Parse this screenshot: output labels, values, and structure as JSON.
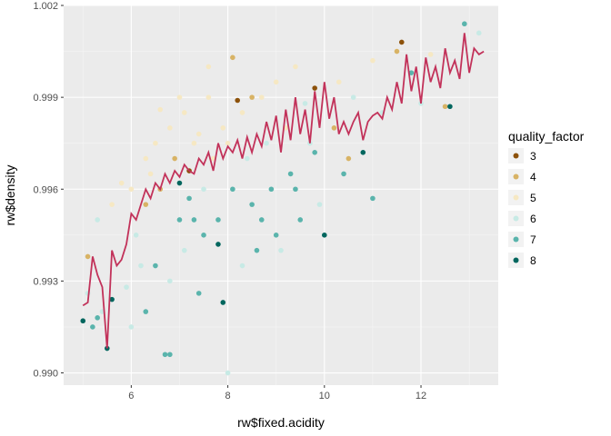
{
  "chart_data": {
    "type": "scatter",
    "title": "",
    "xlabel": "rw$fixed.acidity",
    "ylabel": "rw$density",
    "xlim": [
      4.6,
      13.6
    ],
    "ylim": [
      0.9896,
      1.002
    ],
    "x_ticks": [
      6,
      8,
      10,
      12
    ],
    "x_tick_labels": [
      "6",
      "8",
      "10",
      "12"
    ],
    "y_ticks": [
      0.99,
      0.993,
      0.996,
      0.999,
      1.002
    ],
    "y_tick_labels": [
      "0.990",
      "0.993",
      "0.996",
      "0.999",
      "1.002"
    ],
    "grid": true,
    "legend": {
      "title": "quality_factor",
      "position": "right",
      "entries": [
        {
          "label": "3",
          "color": "#8c510a"
        },
        {
          "label": "4",
          "color": "#d8b365"
        },
        {
          "label": "5",
          "color": "#f6e8c3"
        },
        {
          "label": "6",
          "color": "#c7eae5"
        },
        {
          "label": "7",
          "color": "#5ab4ac"
        },
        {
          "label": "8",
          "color": "#01665e"
        }
      ]
    },
    "line_color": "#c2325a",
    "points": [
      {
        "x": 5.0,
        "y": 0.9917,
        "q": "8"
      },
      {
        "x": 5.1,
        "y": 0.9926,
        "q": "6"
      },
      {
        "x": 5.2,
        "y": 0.9915,
        "q": "7"
      },
      {
        "x": 5.3,
        "y": 0.9918,
        "q": "7"
      },
      {
        "x": 5.4,
        "y": 0.992,
        "q": "6"
      },
      {
        "x": 5.5,
        "y": 0.9908,
        "q": "8"
      },
      {
        "x": 5.6,
        "y": 0.9924,
        "q": "8"
      },
      {
        "x": 5.1,
        "y": 0.9938,
        "q": "4"
      },
      {
        "x": 5.3,
        "y": 0.995,
        "q": "6"
      },
      {
        "x": 5.6,
        "y": 0.9955,
        "q": "5"
      },
      {
        "x": 5.8,
        "y": 0.9962,
        "q": "5"
      },
      {
        "x": 5.9,
        "y": 0.9928,
        "q": "6"
      },
      {
        "x": 6.0,
        "y": 0.996,
        "q": "5"
      },
      {
        "x": 6.1,
        "y": 0.9945,
        "q": "6"
      },
      {
        "x": 6.2,
        "y": 0.9935,
        "q": "6"
      },
      {
        "x": 6.3,
        "y": 0.997,
        "q": "5"
      },
      {
        "x": 6.3,
        "y": 0.9955,
        "q": "4"
      },
      {
        "x": 6.4,
        "y": 0.9965,
        "q": "5"
      },
      {
        "x": 6.5,
        "y": 0.9975,
        "q": "5"
      },
      {
        "x": 6.5,
        "y": 0.9935,
        "q": "7"
      },
      {
        "x": 6.6,
        "y": 0.996,
        "q": "4"
      },
      {
        "x": 6.7,
        "y": 0.9906,
        "q": "7"
      },
      {
        "x": 6.8,
        "y": 0.9906,
        "q": "7"
      },
      {
        "x": 6.8,
        "y": 0.998,
        "q": "5"
      },
      {
        "x": 6.9,
        "y": 0.997,
        "q": "4"
      },
      {
        "x": 7.0,
        "y": 0.995,
        "q": "7"
      },
      {
        "x": 7.0,
        "y": 0.9962,
        "q": "8"
      },
      {
        "x": 7.1,
        "y": 0.9985,
        "q": "5"
      },
      {
        "x": 7.1,
        "y": 0.994,
        "q": "6"
      },
      {
        "x": 7.2,
        "y": 0.9966,
        "q": "3"
      },
      {
        "x": 7.3,
        "y": 0.9975,
        "q": "5"
      },
      {
        "x": 7.3,
        "y": 0.995,
        "q": "7"
      },
      {
        "x": 7.4,
        "y": 0.9978,
        "q": "5"
      },
      {
        "x": 7.5,
        "y": 0.996,
        "q": "6"
      },
      {
        "x": 7.5,
        "y": 0.9945,
        "q": "7"
      },
      {
        "x": 7.6,
        "y": 0.999,
        "q": "5"
      },
      {
        "x": 7.7,
        "y": 0.997,
        "q": "5"
      },
      {
        "x": 7.8,
        "y": 0.9942,
        "q": "8"
      },
      {
        "x": 7.8,
        "y": 0.995,
        "q": "7"
      },
      {
        "x": 7.9,
        "y": 0.998,
        "q": "5"
      },
      {
        "x": 7.9,
        "y": 0.9923,
        "q": "8"
      },
      {
        "x": 8.0,
        "y": 0.99,
        "q": "6"
      },
      {
        "x": 8.0,
        "y": 0.9975,
        "q": "5"
      },
      {
        "x": 8.1,
        "y": 0.996,
        "q": "7"
      },
      {
        "x": 8.2,
        "y": 0.9989,
        "q": "3"
      },
      {
        "x": 8.1,
        "y": 1.0003,
        "q": "4"
      },
      {
        "x": 8.3,
        "y": 0.9985,
        "q": "5"
      },
      {
        "x": 8.4,
        "y": 0.997,
        "q": "6"
      },
      {
        "x": 8.5,
        "y": 0.9955,
        "q": "7"
      },
      {
        "x": 8.6,
        "y": 0.994,
        "q": "7"
      },
      {
        "x": 8.7,
        "y": 0.999,
        "q": "5"
      },
      {
        "x": 8.8,
        "y": 0.9975,
        "q": "6"
      },
      {
        "x": 8.9,
        "y": 0.996,
        "q": "7"
      },
      {
        "x": 9.0,
        "y": 0.9995,
        "q": "5"
      },
      {
        "x": 9.0,
        "y": 0.9945,
        "q": "7"
      },
      {
        "x": 9.2,
        "y": 0.998,
        "q": "5"
      },
      {
        "x": 9.3,
        "y": 0.9965,
        "q": "7"
      },
      {
        "x": 9.4,
        "y": 1.0,
        "q": "5"
      },
      {
        "x": 9.5,
        "y": 0.995,
        "q": "7"
      },
      {
        "x": 9.6,
        "y": 0.9988,
        "q": "6"
      },
      {
        "x": 9.8,
        "y": 0.9993,
        "q": "3"
      },
      {
        "x": 9.8,
        "y": 0.9972,
        "q": "7"
      },
      {
        "x": 9.9,
        "y": 0.9955,
        "q": "6"
      },
      {
        "x": 10.0,
        "y": 0.9945,
        "q": "8"
      },
      {
        "x": 10.2,
        "y": 0.998,
        "q": "4"
      },
      {
        "x": 10.3,
        "y": 0.9995,
        "q": "5"
      },
      {
        "x": 10.4,
        "y": 0.9965,
        "q": "7"
      },
      {
        "x": 10.5,
        "y": 0.997,
        "q": "4"
      },
      {
        "x": 10.6,
        "y": 0.999,
        "q": "6"
      },
      {
        "x": 10.8,
        "y": 0.9972,
        "q": "8"
      },
      {
        "x": 11.0,
        "y": 0.9957,
        "q": "7"
      },
      {
        "x": 11.0,
        "y": 1.0002,
        "q": "5"
      },
      {
        "x": 11.2,
        "y": 0.9985,
        "q": "6"
      },
      {
        "x": 11.5,
        "y": 1.0005,
        "q": "4"
      },
      {
        "x": 11.6,
        "y": 1.0008,
        "q": "3"
      },
      {
        "x": 11.8,
        "y": 0.9998,
        "q": "7"
      },
      {
        "x": 12.0,
        "y": 0.9988,
        "q": "6"
      },
      {
        "x": 12.2,
        "y": 1.0004,
        "q": "5"
      },
      {
        "x": 12.5,
        "y": 0.9987,
        "q": "4"
      },
      {
        "x": 12.6,
        "y": 0.9987,
        "q": "8"
      },
      {
        "x": 12.9,
        "y": 1.0014,
        "q": "7"
      },
      {
        "x": 13.2,
        "y": 1.0011,
        "q": "6"
      },
      {
        "x": 6.0,
        "y": 0.9915,
        "q": "6"
      },
      {
        "x": 6.3,
        "y": 0.992,
        "q": "7"
      },
      {
        "x": 6.8,
        "y": 0.993,
        "q": "6"
      },
      {
        "x": 7.4,
        "y": 0.9926,
        "q": "7"
      },
      {
        "x": 8.3,
        "y": 0.9935,
        "q": "6"
      },
      {
        "x": 9.1,
        "y": 0.994,
        "q": "6"
      },
      {
        "x": 7.0,
        "y": 0.999,
        "q": "5"
      },
      {
        "x": 7.6,
        "y": 1.0,
        "q": "5"
      },
      {
        "x": 8.5,
        "y": 0.999,
        "q": "4"
      },
      {
        "x": 6.6,
        "y": 0.9986,
        "q": "5"
      },
      {
        "x": 7.2,
        "y": 0.9957,
        "q": "7"
      },
      {
        "x": 8.7,
        "y": 0.995,
        "q": "7"
      },
      {
        "x": 9.4,
        "y": 0.996,
        "q": "7"
      },
      {
        "x": 9.7,
        "y": 0.9975,
        "q": "6"
      }
    ],
    "line_x": [
      5.0,
      5.1,
      5.2,
      5.3,
      5.4,
      5.5,
      5.6,
      5.7,
      5.8,
      5.9,
      6.0,
      6.1,
      6.2,
      6.3,
      6.4,
      6.5,
      6.6,
      6.7,
      6.8,
      6.9,
      7.0,
      7.1,
      7.2,
      7.3,
      7.4,
      7.5,
      7.6,
      7.7,
      7.8,
      7.9,
      8.0,
      8.1,
      8.2,
      8.3,
      8.4,
      8.5,
      8.6,
      8.7,
      8.8,
      8.9,
      9.0,
      9.1,
      9.2,
      9.3,
      9.4,
      9.5,
      9.6,
      9.7,
      9.8,
      9.9,
      10.0,
      10.1,
      10.2,
      10.3,
      10.4,
      10.5,
      10.6,
      10.7,
      10.8,
      10.9,
      11.0,
      11.1,
      11.2,
      11.3,
      11.4,
      11.5,
      11.6,
      11.7,
      11.8,
      11.9,
      12.0,
      12.1,
      12.2,
      12.3,
      12.4,
      12.5,
      12.6,
      12.7,
      12.8,
      12.9,
      13.0,
      13.1,
      13.2,
      13.3
    ],
    "line_y": [
      0.9922,
      0.9923,
      0.9938,
      0.9932,
      0.9928,
      0.9908,
      0.994,
      0.9935,
      0.9937,
      0.9942,
      0.9952,
      0.995,
      0.9955,
      0.996,
      0.9957,
      0.9962,
      0.996,
      0.9965,
      0.9962,
      0.9966,
      0.9964,
      0.9968,
      0.9966,
      0.9965,
      0.997,
      0.9968,
      0.9972,
      0.9966,
      0.9975,
      0.997,
      0.9974,
      0.9972,
      0.9976,
      0.997,
      0.9977,
      0.9972,
      0.9978,
      0.9974,
      0.9982,
      0.9976,
      0.9984,
      0.9972,
      0.9986,
      0.9976,
      0.999,
      0.9978,
      0.9986,
      0.9975,
      0.9992,
      0.998,
      0.9995,
      0.9983,
      0.999,
      0.9978,
      0.9982,
      0.9978,
      0.9982,
      0.9985,
      0.9976,
      0.9982,
      0.9984,
      0.9985,
      0.9983,
      0.999,
      0.9986,
      0.9995,
      0.9988,
      1.0004,
      0.9992,
      1.0,
      0.9988,
      1.0003,
      0.9995,
      1.0,
      0.9993,
      1.0006,
      0.9998,
      1.0002,
      0.9996,
      1.0011,
      0.9998,
      1.0006,
      1.0004,
      1.0005
    ]
  }
}
